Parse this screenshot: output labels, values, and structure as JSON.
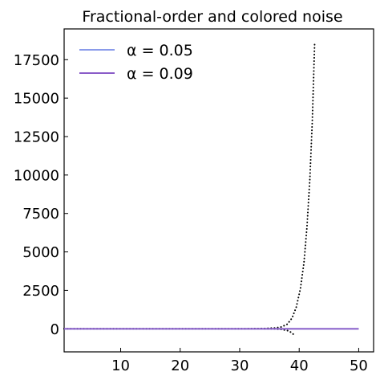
{
  "chart_data": {
    "type": "line",
    "title": "Fractional-order and colored noise",
    "xlabel": "",
    "ylabel": "",
    "xlim": [
      0.5,
      52.5
    ],
    "ylim": [
      -1500,
      19500
    ],
    "x_ticks": [
      10,
      20,
      30,
      40,
      50
    ],
    "y_ticks": [
      0,
      2500,
      5000,
      7500,
      10000,
      12500,
      15000,
      17500
    ],
    "x_tick_labels": [
      "10",
      "20",
      "30",
      "40",
      "50"
    ],
    "y_tick_labels": [
      "0",
      "2500",
      "5000",
      "7500",
      "10000",
      "12500",
      "15000",
      "17500"
    ],
    "grid": false,
    "legend_position": "top-left",
    "series": [
      {
        "name": "α = 0.05",
        "color": "#8a9bea",
        "style": "solid",
        "x": [
          0.5,
          10,
          20,
          30,
          40,
          50
        ],
        "y": [
          0,
          0,
          0,
          0,
          0,
          0
        ]
      },
      {
        "name": "α = 0.09",
        "color": "#8a5cc8",
        "style": "solid",
        "x": [
          0.5,
          10,
          20,
          30,
          40,
          50
        ],
        "y": [
          0,
          0,
          0,
          0,
          0,
          0
        ]
      },
      {
        "name": "reference-growth",
        "color": "#000000",
        "style": "dotted",
        "show_in_legend": false,
        "x": [
          0.5,
          10,
          20,
          30,
          34,
          36,
          37,
          38,
          38.8,
          39.5,
          40.2,
          40.8,
          41.3,
          41.8,
          42.2,
          42.6
        ],
        "y": [
          0,
          0,
          0,
          0,
          20,
          60,
          120,
          300,
          700,
          1400,
          2600,
          4300,
          6600,
          9800,
          13500,
          18600
        ]
      },
      {
        "name": "reference-decay",
        "color": "#000000",
        "style": "dotted",
        "show_in_legend": false,
        "x": [
          0.5,
          10,
          20,
          30,
          34,
          36,
          37,
          38,
          38.6,
          39.1
        ],
        "y": [
          0,
          0,
          0,
          0,
          0,
          -15,
          -40,
          -110,
          -220,
          -380
        ]
      }
    ]
  }
}
